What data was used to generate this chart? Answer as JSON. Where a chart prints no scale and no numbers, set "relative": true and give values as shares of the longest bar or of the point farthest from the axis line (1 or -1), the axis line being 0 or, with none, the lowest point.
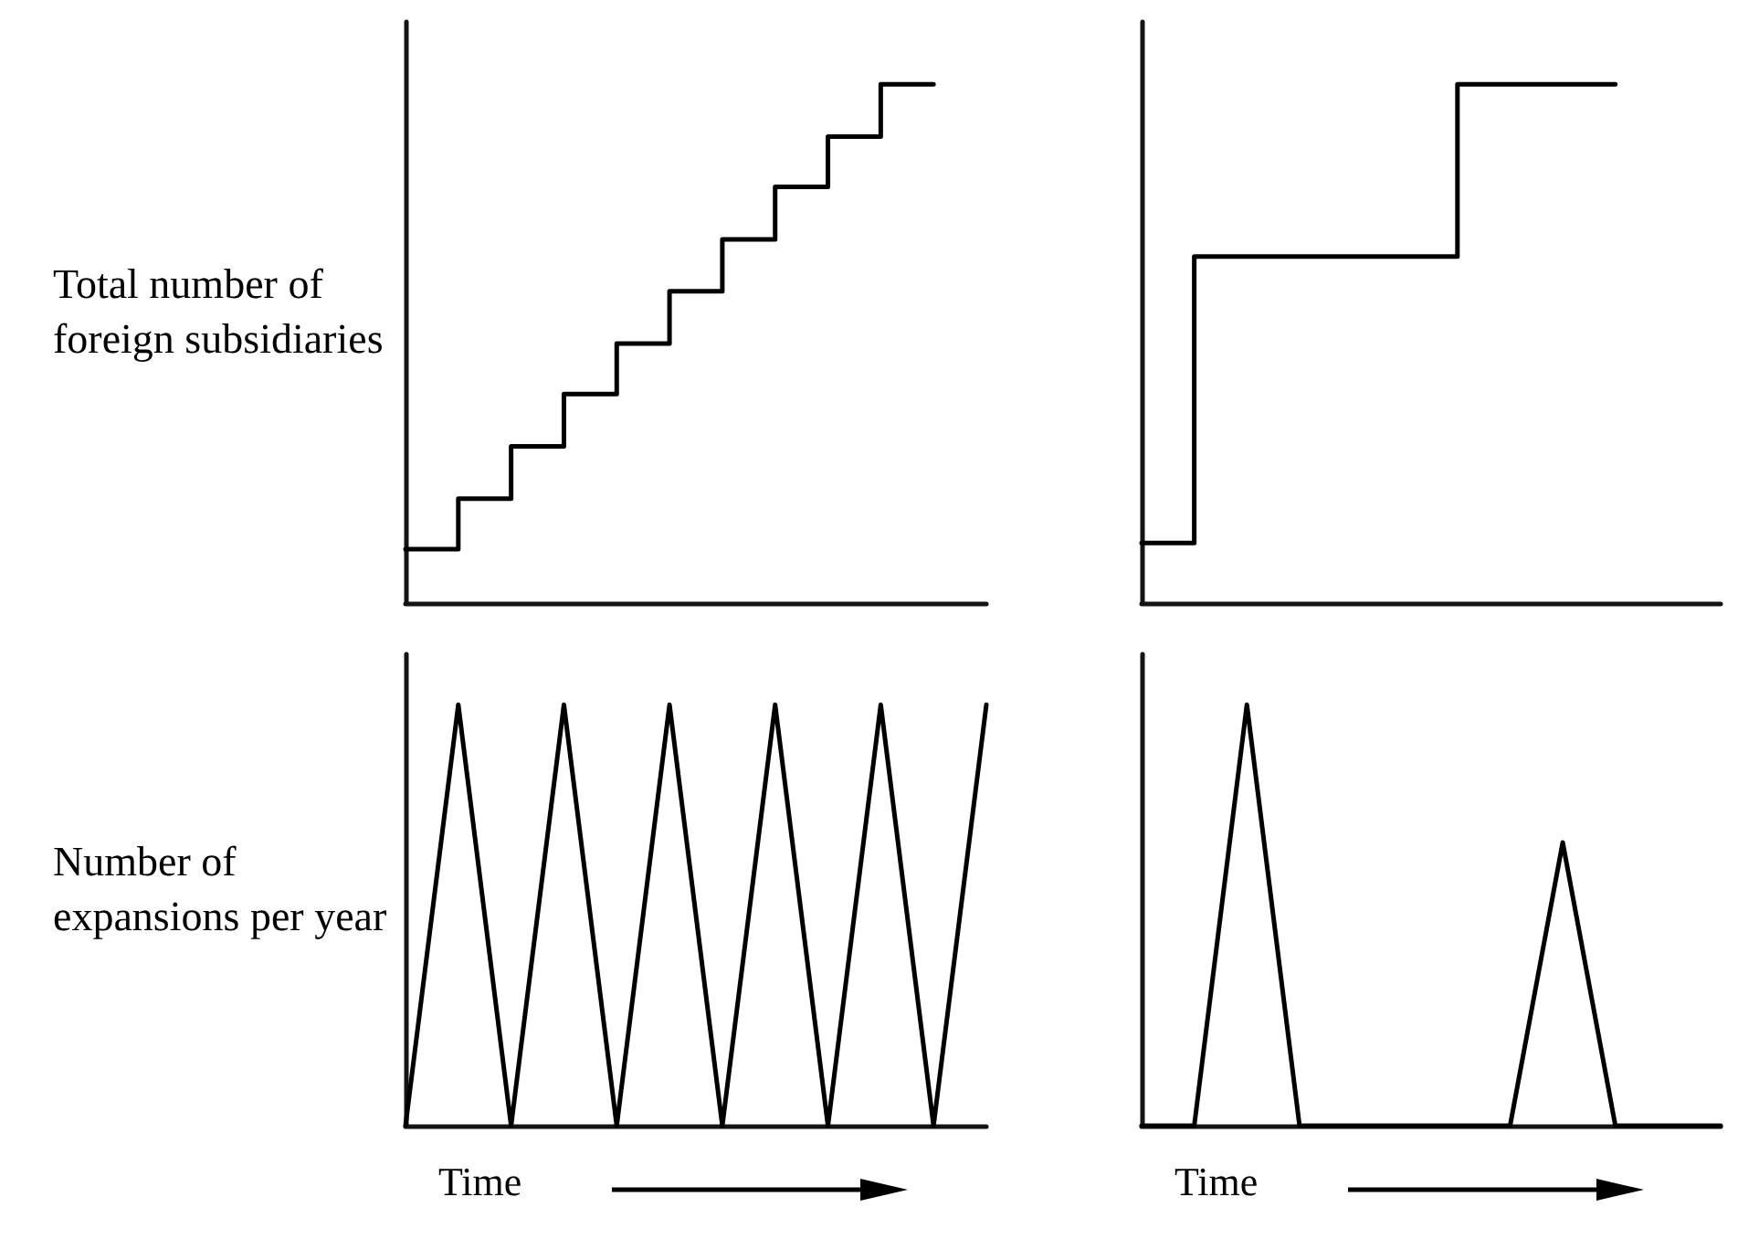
{
  "chart_data": [
    {
      "type": "step",
      "ylabel": "Total number of foreign subsidiaries",
      "relative": true,
      "marker": "none",
      "line_style": "solid",
      "color": "#000000",
      "categories": [
        null,
        null,
        null,
        null,
        null,
        null,
        null,
        null,
        null,
        null,
        null,
        null
      ],
      "values": [
        0.104,
        0.104,
        0.201,
        0.302,
        0.403,
        0.5,
        0.601,
        0.701,
        0.802,
        0.899,
        1,
        null
      ]
    },
    {
      "type": "step",
      "relative": true,
      "marker": "none",
      "line_style": "solid",
      "color": "#000000",
      "categories": [
        null,
        null,
        null,
        null,
        null,
        null,
        null,
        null,
        null,
        null,
        null,
        null
      ],
      "values": [
        0.116,
        0.116,
        0.668,
        0.668,
        0.668,
        0.668,
        0.668,
        1,
        1,
        1,
        null,
        null
      ]
    },
    {
      "type": "line",
      "ylabel": "Number of expansions per year",
      "xlabel": "Time",
      "relative": true,
      "marker": "none",
      "line_style": "solid",
      "color": "#000000",
      "categories": [
        null,
        null,
        null,
        null,
        null,
        null,
        null,
        null,
        null,
        null,
        null,
        null
      ],
      "values": [
        0,
        1,
        0,
        1,
        0,
        1,
        0,
        1,
        0,
        1,
        0,
        1
      ]
    },
    {
      "type": "line",
      "xlabel": "Time",
      "relative": true,
      "marker": "none",
      "line_style": "solid",
      "color": "#000000",
      "categories": [
        null,
        null,
        null,
        null,
        null,
        null,
        null,
        null,
        null,
        null,
        null,
        null
      ],
      "values": [
        0,
        0,
        1,
        0,
        0,
        0,
        0,
        0,
        0.673,
        0,
        0,
        0
      ]
    }
  ]
}
